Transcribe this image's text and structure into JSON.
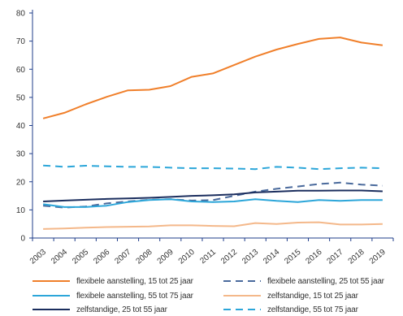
{
  "chart_data": {
    "type": "line",
    "title": "",
    "xlabel": "",
    "ylabel": "",
    "x": [
      "2003",
      "2004",
      "2005",
      "2006",
      "2007",
      "2008",
      "2009",
      "2010",
      "2011",
      "2012",
      "2013",
      "2014",
      "2015",
      "2016",
      "2017",
      "2018",
      "2019"
    ],
    "ylim": [
      0,
      80
    ],
    "yticks": [
      0,
      10,
      20,
      30,
      40,
      50,
      60,
      70,
      80
    ],
    "grid": false,
    "legend_position": "bottom",
    "series": [
      {
        "name": "flexibele aanstelling, 15 tot 25 jaar",
        "color": "#f07f2a",
        "dash": "solid",
        "values": [
          42.5,
          44.5,
          47.5,
          50.2,
          52.5,
          52.7,
          54.0,
          57.3,
          58.5,
          61.5,
          64.5,
          67.0,
          69.0,
          70.8,
          71.3,
          69.5,
          68.5
        ]
      },
      {
        "name": "flexibele aanstelling, 25 tot 55 jaar",
        "color": "#4a6a9c",
        "dash": "dashed",
        "values": [
          11.5,
          10.8,
          11.2,
          12.3,
          13.0,
          13.6,
          13.8,
          13.3,
          13.5,
          15.0,
          16.5,
          17.5,
          18.3,
          19.2,
          19.7,
          19.0,
          18.6
        ]
      },
      {
        "name": "flexibele aanstelling, 55 tot 75 jaar",
        "color": "#2ca6d9",
        "dash": "solid",
        "values": [
          12.0,
          11.0,
          11.0,
          11.5,
          12.8,
          13.5,
          13.8,
          13.0,
          12.8,
          13.0,
          13.8,
          13.2,
          12.8,
          13.5,
          13.2,
          13.5,
          13.5
        ]
      },
      {
        "name": "zelfstandige, 15 tot 25 jaar",
        "color": "#f4b88a",
        "dash": "solid",
        "values": [
          3.2,
          3.4,
          3.7,
          3.9,
          4.0,
          4.1,
          4.5,
          4.5,
          4.3,
          4.2,
          5.3,
          5.0,
          5.5,
          5.6,
          4.8,
          4.8,
          5.0
        ]
      },
      {
        "name": "zelfstandige, 25 tot 55 jaar",
        "color": "#1b2e5e",
        "dash": "solid",
        "values": [
          13.0,
          13.3,
          13.6,
          13.9,
          14.1,
          14.3,
          14.6,
          15.0,
          15.2,
          15.5,
          16.2,
          16.5,
          16.8,
          16.8,
          16.9,
          16.9,
          16.6
        ]
      },
      {
        "name": "zelfstandige, 55 tot 75 jaar",
        "color": "#2ca6d9",
        "dash": "dashed",
        "values": [
          25.8,
          25.3,
          25.7,
          25.5,
          25.3,
          25.3,
          25.0,
          24.8,
          24.8,
          24.7,
          24.5,
          25.3,
          25.0,
          24.5,
          24.8,
          25.0,
          24.8
        ]
      }
    ]
  },
  "legend": [
    {
      "label": "flexibele aanstelling, 15 tot 25 jaar",
      "color": "#f07f2a",
      "dash": "solid"
    },
    {
      "label": "flexibele aanstelling, 25 tot 55 jaar",
      "color": "#4a6a9c",
      "dash": "dashed"
    },
    {
      "label": "flexibele aanstelling, 55 tot 75 jaar",
      "color": "#2ca6d9",
      "dash": "solid"
    },
    {
      "label": "zelfstandige, 15 tot 25 jaar",
      "color": "#f4b88a",
      "dash": "solid"
    },
    {
      "label": "zelfstandige, 25 tot 55 jaar",
      "color": "#1b2e5e",
      "dash": "solid"
    },
    {
      "label": "zelfstandige, 55 tot 75 jaar",
      "color": "#2ca6d9",
      "dash": "dashed"
    }
  ]
}
